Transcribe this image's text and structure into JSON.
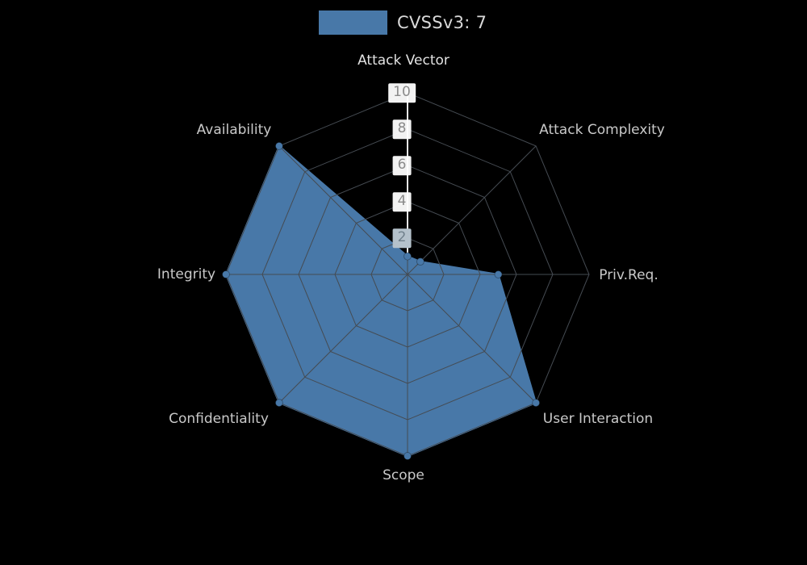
{
  "legend": {
    "label": "CVSSv3: 7"
  },
  "chart_data": {
    "type": "radar",
    "title": "CVSSv3: 7",
    "categories": [
      "Attack Vector",
      "Attack Complexity",
      "Priv.Req.",
      "User Interaction",
      "Scope",
      "Confidentiality",
      "Integrity",
      "Availability"
    ],
    "series": [
      {
        "name": "CVSSv3: 7",
        "values": [
          1,
          1,
          5,
          10,
          10,
          10,
          10,
          10
        ]
      }
    ],
    "ticks": [
      10,
      8,
      6,
      4,
      2
    ],
    "rlim": [
      0,
      10
    ],
    "grid": "on",
    "legend_position": "top-center",
    "colors": {
      "fill": "#4878a8",
      "grid": "#454b52",
      "axis_line": "#e8e8e8"
    }
  }
}
